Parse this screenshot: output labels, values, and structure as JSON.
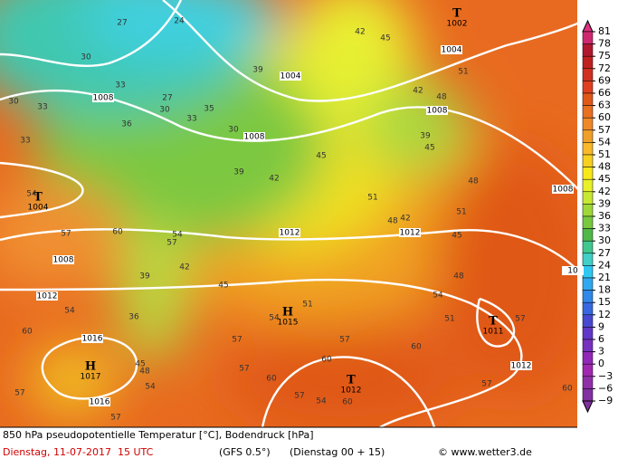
{
  "caption": {
    "title": "850 hPa pseudopotentielle Temperatur [°C], Bodendruck [hPa]",
    "date": "Dienstag, 11-07-2017  15 UTC",
    "model": "(GFS 0.5°)",
    "run": "(Dienstag 00 + 15)",
    "credit": "© www.wetter3.de"
  },
  "colorbar": {
    "labels": [
      "81",
      "78",
      "75",
      "72",
      "69",
      "66",
      "63",
      "60",
      "57",
      "54",
      "51",
      "48",
      "45",
      "42",
      "39",
      "36",
      "33",
      "30",
      "27",
      "24",
      "21",
      "18",
      "15",
      "12",
      "9",
      "6",
      "3",
      "0",
      "−3",
      "−6",
      "−9"
    ]
  },
  "map": {
    "pressure_centers": [
      {
        "symbol": "T",
        "value": "1002"
      },
      {
        "symbol": "T",
        "value": "1004"
      },
      {
        "symbol": "H",
        "value": "1015"
      },
      {
        "symbol": "H",
        "value": "1017"
      },
      {
        "symbol": "T",
        "value": "1012"
      },
      {
        "symbol": "T",
        "value": "1011"
      }
    ],
    "isobar_labels": [
      "1004",
      "1008",
      "1008",
      "1004",
      "1008",
      "1008",
      "1012",
      "1012",
      "1008",
      "1012",
      "1016",
      "1016",
      "1012",
      "10"
    ],
    "temperature_labels": [
      "27",
      "24",
      "30",
      "33",
      "27",
      "30",
      "30",
      "33",
      "33",
      "36",
      "35",
      "30",
      "33",
      "39",
      "42",
      "45",
      "42",
      "48",
      "51",
      "39",
      "45",
      "39",
      "42",
      "45",
      "48",
      "51",
      "54",
      "57",
      "60",
      "57",
      "54",
      "45",
      "42",
      "39",
      "36",
      "45",
      "48",
      "51",
      "54",
      "57",
      "60",
      "57",
      "60",
      "57",
      "54",
      "51",
      "48",
      "42",
      "45",
      "48",
      "51",
      "54",
      "57",
      "60",
      "57",
      "60",
      "57",
      "54",
      "60",
      "57",
      "60",
      "54",
      "57"
    ]
  }
}
